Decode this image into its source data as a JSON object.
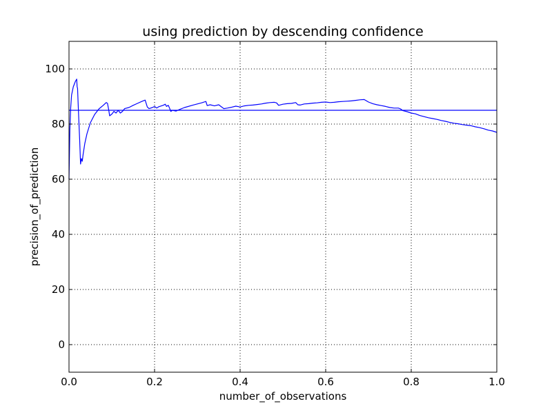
{
  "chart_data": {
    "type": "line",
    "title": "using prediction by descending confidence",
    "xlabel": "number_of_observations",
    "ylabel": "precision_of_prediction",
    "xlim": [
      0.0,
      1.0
    ],
    "ylim": [
      -10,
      110
    ],
    "xticks": [
      "0.0",
      "0.2",
      "0.4",
      "0.6",
      "0.8",
      "1.0"
    ],
    "yticks": [
      "0",
      "20",
      "40",
      "60",
      "80",
      "100"
    ],
    "grid": true,
    "series": [
      {
        "color": "#0000ff",
        "points": [
          [
            0.0,
            60.0
          ],
          [
            0.002,
            78.0
          ],
          [
            0.004,
            86.0
          ],
          [
            0.006,
            90.5
          ],
          [
            0.01,
            93.5
          ],
          [
            0.015,
            95.5
          ],
          [
            0.018,
            96.3
          ],
          [
            0.019,
            93.5
          ],
          [
            0.02,
            93.0
          ],
          [
            0.022,
            85.0
          ],
          [
            0.025,
            74.0
          ],
          [
            0.027,
            65.5
          ],
          [
            0.029,
            67.5
          ],
          [
            0.031,
            66.5
          ],
          [
            0.033,
            69.0
          ],
          [
            0.037,
            73.0
          ],
          [
            0.042,
            76.5
          ],
          [
            0.05,
            80.5
          ],
          [
            0.06,
            83.5
          ],
          [
            0.07,
            85.5
          ],
          [
            0.08,
            86.8
          ],
          [
            0.087,
            87.8
          ],
          [
            0.09,
            87.5
          ],
          [
            0.093,
            85.0
          ],
          [
            0.095,
            83.0
          ],
          [
            0.1,
            83.6
          ],
          [
            0.105,
            84.6
          ],
          [
            0.11,
            84.0
          ],
          [
            0.115,
            85.0
          ],
          [
            0.12,
            84.0
          ],
          [
            0.125,
            84.6
          ],
          [
            0.13,
            85.6
          ],
          [
            0.14,
            86.0
          ],
          [
            0.15,
            86.8
          ],
          [
            0.16,
            87.5
          ],
          [
            0.17,
            88.2
          ],
          [
            0.178,
            88.7
          ],
          [
            0.183,
            86.2
          ],
          [
            0.187,
            85.6
          ],
          [
            0.195,
            86.0
          ],
          [
            0.2,
            86.4
          ],
          [
            0.205,
            85.8
          ],
          [
            0.21,
            86.3
          ],
          [
            0.22,
            86.8
          ],
          [
            0.225,
            87.2
          ],
          [
            0.228,
            86.4
          ],
          [
            0.232,
            86.8
          ],
          [
            0.235,
            85.8
          ],
          [
            0.238,
            84.6
          ],
          [
            0.242,
            85.0
          ],
          [
            0.25,
            84.7
          ],
          [
            0.26,
            85.4
          ],
          [
            0.27,
            86.0
          ],
          [
            0.29,
            86.9
          ],
          [
            0.31,
            87.7
          ],
          [
            0.32,
            88.2
          ],
          [
            0.323,
            86.7
          ],
          [
            0.33,
            87.0
          ],
          [
            0.34,
            86.6
          ],
          [
            0.35,
            87.0
          ],
          [
            0.355,
            86.4
          ],
          [
            0.362,
            85.6
          ],
          [
            0.37,
            85.8
          ],
          [
            0.38,
            86.1
          ],
          [
            0.39,
            86.5
          ],
          [
            0.4,
            86.2
          ],
          [
            0.41,
            86.6
          ],
          [
            0.42,
            86.8
          ],
          [
            0.43,
            86.9
          ],
          [
            0.44,
            87.1
          ],
          [
            0.45,
            87.3
          ],
          [
            0.46,
            87.6
          ],
          [
            0.47,
            87.8
          ],
          [
            0.48,
            87.9
          ],
          [
            0.485,
            87.7
          ],
          [
            0.49,
            86.8
          ],
          [
            0.5,
            87.2
          ],
          [
            0.51,
            87.4
          ],
          [
            0.52,
            87.5
          ],
          [
            0.53,
            87.8
          ],
          [
            0.535,
            87.0
          ],
          [
            0.54,
            86.9
          ],
          [
            0.55,
            87.3
          ],
          [
            0.56,
            87.4
          ],
          [
            0.57,
            87.6
          ],
          [
            0.58,
            87.7
          ],
          [
            0.59,
            87.9
          ],
          [
            0.6,
            88.0
          ],
          [
            0.61,
            87.8
          ],
          [
            0.62,
            87.9
          ],
          [
            0.63,
            88.1
          ],
          [
            0.64,
            88.2
          ],
          [
            0.65,
            88.3
          ],
          [
            0.66,
            88.4
          ],
          [
            0.67,
            88.6
          ],
          [
            0.68,
            88.8
          ],
          [
            0.69,
            88.9
          ],
          [
            0.7,
            88.0
          ],
          [
            0.71,
            87.4
          ],
          [
            0.72,
            87.0
          ],
          [
            0.73,
            86.7
          ],
          [
            0.74,
            86.4
          ],
          [
            0.75,
            86.0
          ],
          [
            0.76,
            85.8
          ],
          [
            0.77,
            85.8
          ],
          [
            0.775,
            85.5
          ],
          [
            0.78,
            84.9
          ],
          [
            0.79,
            84.5
          ],
          [
            0.8,
            84.0
          ],
          [
            0.81,
            83.7
          ],
          [
            0.82,
            83.1
          ],
          [
            0.83,
            82.7
          ],
          [
            0.84,
            82.3
          ],
          [
            0.85,
            82.0
          ],
          [
            0.86,
            81.7
          ],
          [
            0.87,
            81.3
          ],
          [
            0.88,
            81.0
          ],
          [
            0.89,
            80.6
          ],
          [
            0.9,
            80.3
          ],
          [
            0.91,
            80.1
          ],
          [
            0.92,
            79.8
          ],
          [
            0.93,
            79.6
          ],
          [
            0.94,
            79.4
          ],
          [
            0.95,
            79.0
          ],
          [
            0.96,
            78.7
          ],
          [
            0.97,
            78.3
          ],
          [
            0.98,
            77.8
          ],
          [
            0.99,
            77.5
          ],
          [
            1.0,
            77.0
          ]
        ]
      },
      {
        "color": "#0000ff",
        "points": [
          [
            0.0,
            85.0
          ],
          [
            1.0,
            85.0
          ]
        ]
      }
    ]
  }
}
